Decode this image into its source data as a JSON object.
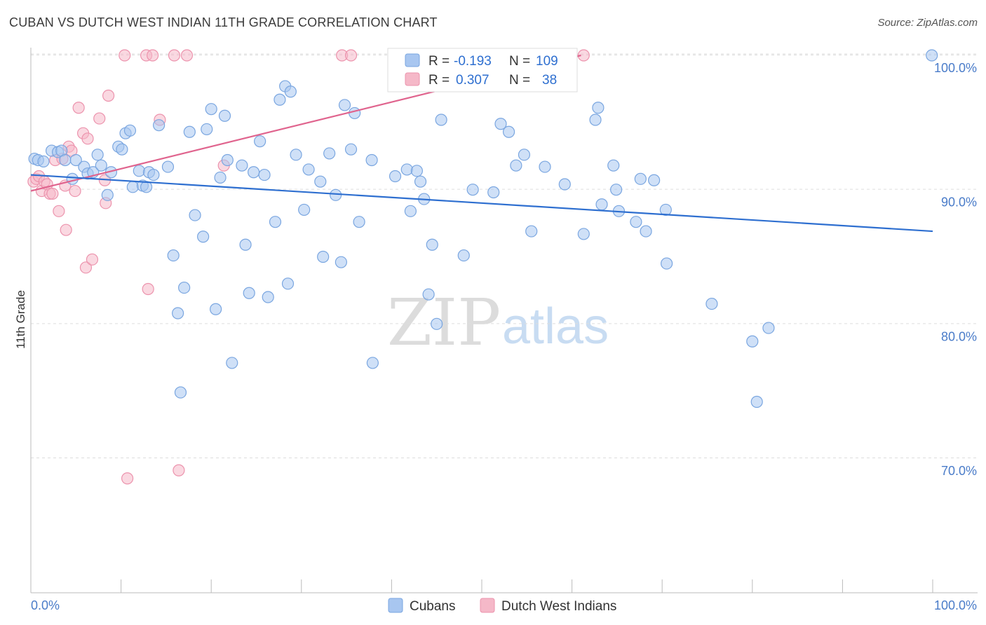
{
  "header": {
    "title": "CUBAN VS DUTCH WEST INDIAN 11TH GRADE CORRELATION CHART",
    "source": "Source: ZipAtlas.com"
  },
  "watermark": {
    "zip": "ZIP",
    "atlas": "atlas"
  },
  "legend": {
    "r_label": "R =",
    "n_label": "N =",
    "entries": [
      {
        "r": "-0.193",
        "n": "109",
        "color": "#a8c6f0"
      },
      {
        "r": "0.307",
        "n": "38",
        "color": "#f5b8c8"
      }
    ]
  },
  "bottom_legend": [
    {
      "label": "Cubans",
      "color": "#a8c6f0"
    },
    {
      "label": "Dutch West Indians",
      "color": "#f5b8c8"
    }
  ],
  "colors": {
    "blue_fill": "#a8c6f0",
    "blue_stroke": "#7aa6e0",
    "blue_line": "#2e6fd0",
    "pink_fill": "#f5b8c8",
    "pink_stroke": "#ec93ad",
    "pink_line": "#e0648e",
    "grid": "#dddddd",
    "tick_text": "#4a7cc9"
  },
  "chart_data": {
    "type": "scatter",
    "title": "CUBAN VS DUTCH WEST INDIAN 11TH GRADE CORRELATION CHART",
    "xlabel": "",
    "ylabel": "11th Grade",
    "xlim": [
      0,
      100
    ],
    "ylim": [
      60.5,
      100.5
    ],
    "x_tick_labels": [
      "0.0%",
      "100.0%"
    ],
    "y_ticks": [
      70,
      80,
      90,
      100
    ],
    "y_tick_labels": [
      "70.0%",
      "80.0%",
      "90.0%",
      "100.0%"
    ],
    "grid": true,
    "legend_position": "top-center",
    "series": [
      {
        "name": "Cubans",
        "r": -0.193,
        "n": 109,
        "trend": {
          "x": [
            0,
            100
          ],
          "y": [
            91.1,
            86.9
          ]
        },
        "points": [
          [
            0.4,
            92.3
          ],
          [
            0.8,
            92.2
          ],
          [
            1.4,
            92.1
          ],
          [
            2.3,
            92.9
          ],
          [
            3.0,
            92.8
          ],
          [
            3.4,
            92.9
          ],
          [
            3.8,
            92.2
          ],
          [
            4.6,
            90.8
          ],
          [
            5.0,
            92.2
          ],
          [
            5.9,
            91.7
          ],
          [
            6.3,
            91.2
          ],
          [
            6.9,
            91.3
          ],
          [
            7.4,
            92.6
          ],
          [
            7.8,
            91.8
          ],
          [
            8.5,
            89.6
          ],
          [
            8.9,
            91.3
          ],
          [
            9.7,
            93.2
          ],
          [
            10.1,
            93.0
          ],
          [
            10.5,
            94.2
          ],
          [
            11.0,
            94.4
          ],
          [
            11.3,
            90.2
          ],
          [
            12.0,
            91.4
          ],
          [
            12.4,
            90.3
          ],
          [
            12.8,
            90.2
          ],
          [
            13.1,
            91.3
          ],
          [
            13.6,
            91.1
          ],
          [
            14.2,
            94.8
          ],
          [
            15.2,
            91.7
          ],
          [
            15.8,
            85.1
          ],
          [
            16.3,
            80.8
          ],
          [
            16.6,
            74.9
          ],
          [
            17.0,
            82.7
          ],
          [
            17.6,
            94.3
          ],
          [
            18.2,
            88.1
          ],
          [
            19.1,
            86.5
          ],
          [
            19.5,
            94.5
          ],
          [
            20.0,
            96.0
          ],
          [
            20.5,
            81.1
          ],
          [
            21.0,
            90.9
          ],
          [
            21.5,
            95.5
          ],
          [
            21.8,
            92.2
          ],
          [
            22.3,
            77.1
          ],
          [
            23.4,
            91.8
          ],
          [
            23.8,
            85.9
          ],
          [
            24.2,
            82.3
          ],
          [
            24.7,
            91.3
          ],
          [
            25.4,
            93.6
          ],
          [
            25.9,
            91.1
          ],
          [
            26.3,
            82.0
          ],
          [
            27.1,
            87.6
          ],
          [
            27.6,
            96.7
          ],
          [
            28.2,
            97.7
          ],
          [
            28.5,
            83.0
          ],
          [
            28.8,
            97.3
          ],
          [
            29.4,
            92.6
          ],
          [
            30.3,
            88.5
          ],
          [
            30.8,
            91.5
          ],
          [
            32.1,
            90.6
          ],
          [
            32.4,
            85.0
          ],
          [
            33.1,
            92.7
          ],
          [
            33.8,
            89.6
          ],
          [
            34.4,
            84.6
          ],
          [
            34.8,
            96.3
          ],
          [
            35.5,
            93.0
          ],
          [
            35.9,
            95.7
          ],
          [
            36.4,
            87.6
          ],
          [
            37.8,
            92.2
          ],
          [
            37.9,
            77.1
          ],
          [
            40.4,
            91.0
          ],
          [
            41.7,
            91.5
          ],
          [
            42.1,
            88.4
          ],
          [
            42.8,
            91.4
          ],
          [
            43.2,
            90.6
          ],
          [
            43.6,
            89.3
          ],
          [
            44.1,
            82.2
          ],
          [
            44.5,
            85.9
          ],
          [
            45.0,
            80.0
          ],
          [
            45.5,
            95.2
          ],
          [
            48.0,
            85.1
          ],
          [
            49.0,
            90.0
          ],
          [
            51.3,
            89.8
          ],
          [
            52.1,
            94.9
          ],
          [
            53.0,
            94.3
          ],
          [
            53.8,
            91.8
          ],
          [
            54.7,
            92.6
          ],
          [
            55.5,
            86.9
          ],
          [
            57.0,
            91.7
          ],
          [
            59.2,
            90.4
          ],
          [
            61.3,
            86.7
          ],
          [
            62.6,
            95.2
          ],
          [
            62.9,
            96.1
          ],
          [
            63.3,
            88.9
          ],
          [
            64.6,
            91.8
          ],
          [
            64.9,
            90.0
          ],
          [
            65.2,
            88.4
          ],
          [
            67.1,
            87.6
          ],
          [
            67.6,
            90.8
          ],
          [
            68.2,
            86.9
          ],
          [
            69.1,
            90.7
          ],
          [
            70.4,
            88.5
          ],
          [
            70.5,
            84.5
          ],
          [
            75.5,
            81.5
          ],
          [
            80.0,
            78.7
          ],
          [
            80.5,
            74.2
          ],
          [
            81.8,
            79.7
          ],
          [
            99.9,
            100.0
          ]
        ]
      },
      {
        "name": "Dutch West Indians",
        "r": 0.307,
        "n": 38,
        "trend": {
          "x": [
            0,
            61
          ],
          "y": [
            89.9,
            100.0
          ]
        },
        "points": [
          [
            0.3,
            90.6
          ],
          [
            0.6,
            90.8
          ],
          [
            0.9,
            91.0
          ],
          [
            1.2,
            89.9
          ],
          [
            1.5,
            90.6
          ],
          [
            1.8,
            90.4
          ],
          [
            2.1,
            89.7
          ],
          [
            2.4,
            89.7
          ],
          [
            2.7,
            92.2
          ],
          [
            3.1,
            88.4
          ],
          [
            3.5,
            92.3
          ],
          [
            3.8,
            90.3
          ],
          [
            3.9,
            87.0
          ],
          [
            4.2,
            93.2
          ],
          [
            4.5,
            92.9
          ],
          [
            4.9,
            89.9
          ],
          [
            5.3,
            96.1
          ],
          [
            5.8,
            94.2
          ],
          [
            6.1,
            84.2
          ],
          [
            6.3,
            93.8
          ],
          [
            6.8,
            84.8
          ],
          [
            7.6,
            95.3
          ],
          [
            8.2,
            90.7
          ],
          [
            8.3,
            89.0
          ],
          [
            8.6,
            97.0
          ],
          [
            10.4,
            100.0
          ],
          [
            10.7,
            68.5
          ],
          [
            12.8,
            100.0
          ],
          [
            13.0,
            82.6
          ],
          [
            13.5,
            100.0
          ],
          [
            14.3,
            95.2
          ],
          [
            15.9,
            100.0
          ],
          [
            16.4,
            69.1
          ],
          [
            17.3,
            100.0
          ],
          [
            21.4,
            91.8
          ],
          [
            34.5,
            100.0
          ],
          [
            35.5,
            100.0
          ],
          [
            61.3,
            100.0
          ]
        ]
      }
    ]
  }
}
